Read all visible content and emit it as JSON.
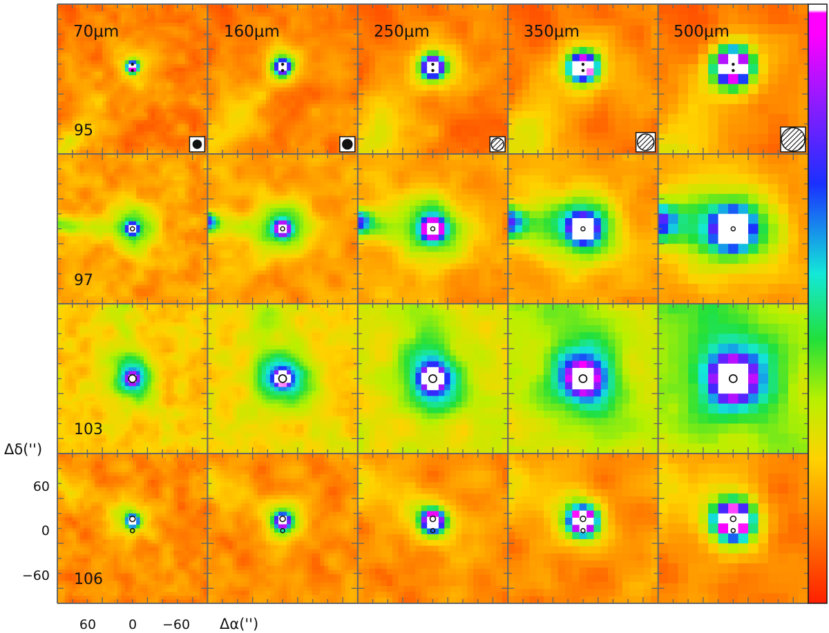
{
  "figure": {
    "bands": [
      "70μm",
      "160μm",
      "250μm",
      "350μm",
      "500μm"
    ],
    "sources": [
      "95",
      "97",
      "103",
      "106"
    ],
    "axes": {
      "ra_label": "Δα('')",
      "dec_label": "Δδ('')",
      "ra_tick_labels": [
        "60",
        "0",
        "−60"
      ],
      "dec_tick_labels": [
        "60",
        "0",
        "−60"
      ]
    },
    "colormap": [
      "#ff1f00",
      "#ff7a00",
      "#ffd200",
      "#b8f000",
      "#22e03a",
      "#14e8d8",
      "#1a30ff",
      "#8a1cff",
      "#ff00ff",
      "#ffffff"
    ],
    "beams": [
      {
        "band": "70μm",
        "style": "filled"
      },
      {
        "band": "160μm",
        "style": "filled"
      },
      {
        "band": "250μm",
        "style": "hatched"
      },
      {
        "band": "350μm",
        "style": "hatched"
      },
      {
        "band": "500μm",
        "style": "hatched"
      }
    ]
  }
}
